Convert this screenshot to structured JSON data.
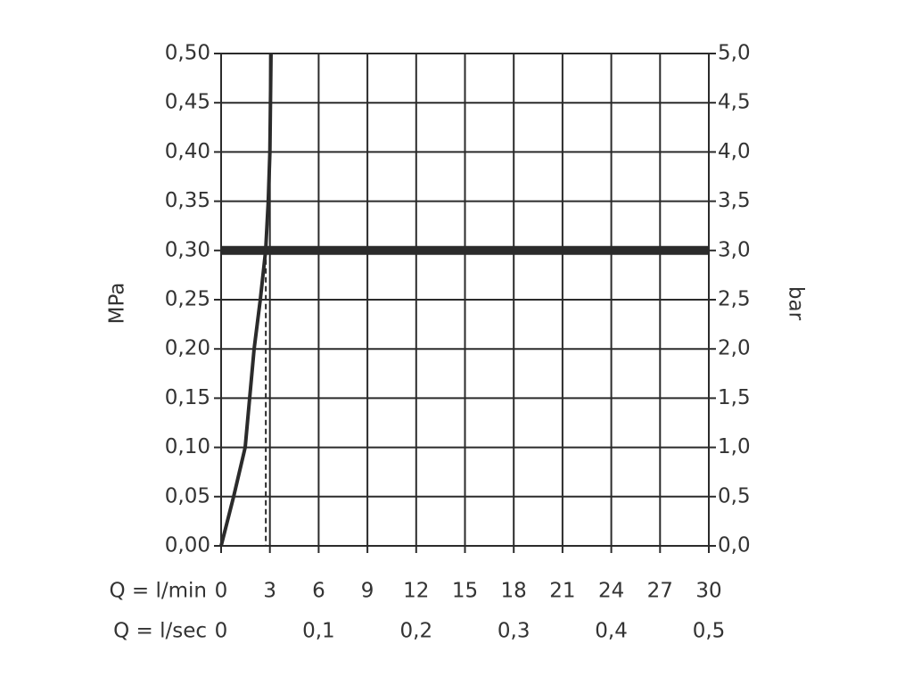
{
  "chart_data": {
    "type": "line",
    "y_label": "MPa",
    "y2_label": "bar",
    "x_label": "Q = l/min",
    "x2_label": "Q = l/sec",
    "xlim": [
      0,
      30
    ],
    "xticks": [
      0,
      3,
      6,
      9,
      12,
      15,
      18,
      21,
      24,
      27,
      30
    ],
    "x2lim": [
      0,
      0.5
    ],
    "x2ticks": [
      0,
      {
        "value": 0.1,
        "label": "0,1"
      },
      {
        "value": 0.2,
        "label": "0,2"
      },
      {
        "value": 0.3,
        "label": "0,3"
      },
      {
        "value": 0.4,
        "label": "0,4"
      },
      {
        "value": 0.5,
        "label": "0,5"
      }
    ],
    "ylim": [
      0,
      0.5
    ],
    "yticks": [
      {
        "value": 0,
        "label": "0,00"
      },
      {
        "value": 0.05,
        "label": "0,05"
      },
      {
        "value": 0.1,
        "label": "0,10"
      },
      {
        "value": 0.15,
        "label": "0,15"
      },
      {
        "value": 0.2,
        "label": "0,20"
      },
      {
        "value": 0.25,
        "label": "0,25"
      },
      {
        "value": 0.3,
        "label": "0,30"
      },
      {
        "value": 0.35,
        "label": "0,35"
      },
      {
        "value": 0.4,
        "label": "0,40"
      },
      {
        "value": 0.45,
        "label": "0,45"
      },
      {
        "value": 0.5,
        "label": "0,50"
      }
    ],
    "y2lim": [
      0,
      5
    ],
    "y2ticks": [
      {
        "value": 0,
        "label": "0,0"
      },
      {
        "value": 0.5,
        "label": "0,5"
      },
      {
        "value": 1,
        "label": "1,0"
      },
      {
        "value": 1.5,
        "label": "1,5"
      },
      {
        "value": 2,
        "label": "2,0"
      },
      {
        "value": 2.5,
        "label": "2,5"
      },
      {
        "value": 3,
        "label": "3,0"
      },
      {
        "value": 3.5,
        "label": "3,5"
      },
      {
        "value": 4,
        "label": "4,0"
      },
      {
        "value": 4.5,
        "label": "4,5"
      },
      {
        "value": 5,
        "label": "5,0"
      }
    ],
    "grid": true,
    "color": "#2b2b2b",
    "series": [
      {
        "x": [
          0,
          0.77,
          1.48,
          2.03,
          2.41,
          2.74,
          2.9,
          3.0,
          3.07
        ],
        "values": [
          0,
          0.05,
          0.1,
          0.2,
          0.25,
          0.3,
          0.35,
          0.4,
          0.5
        ],
        "color": "#2b2b2b"
      }
    ],
    "hline": 0.3,
    "vline": 2.75
  }
}
